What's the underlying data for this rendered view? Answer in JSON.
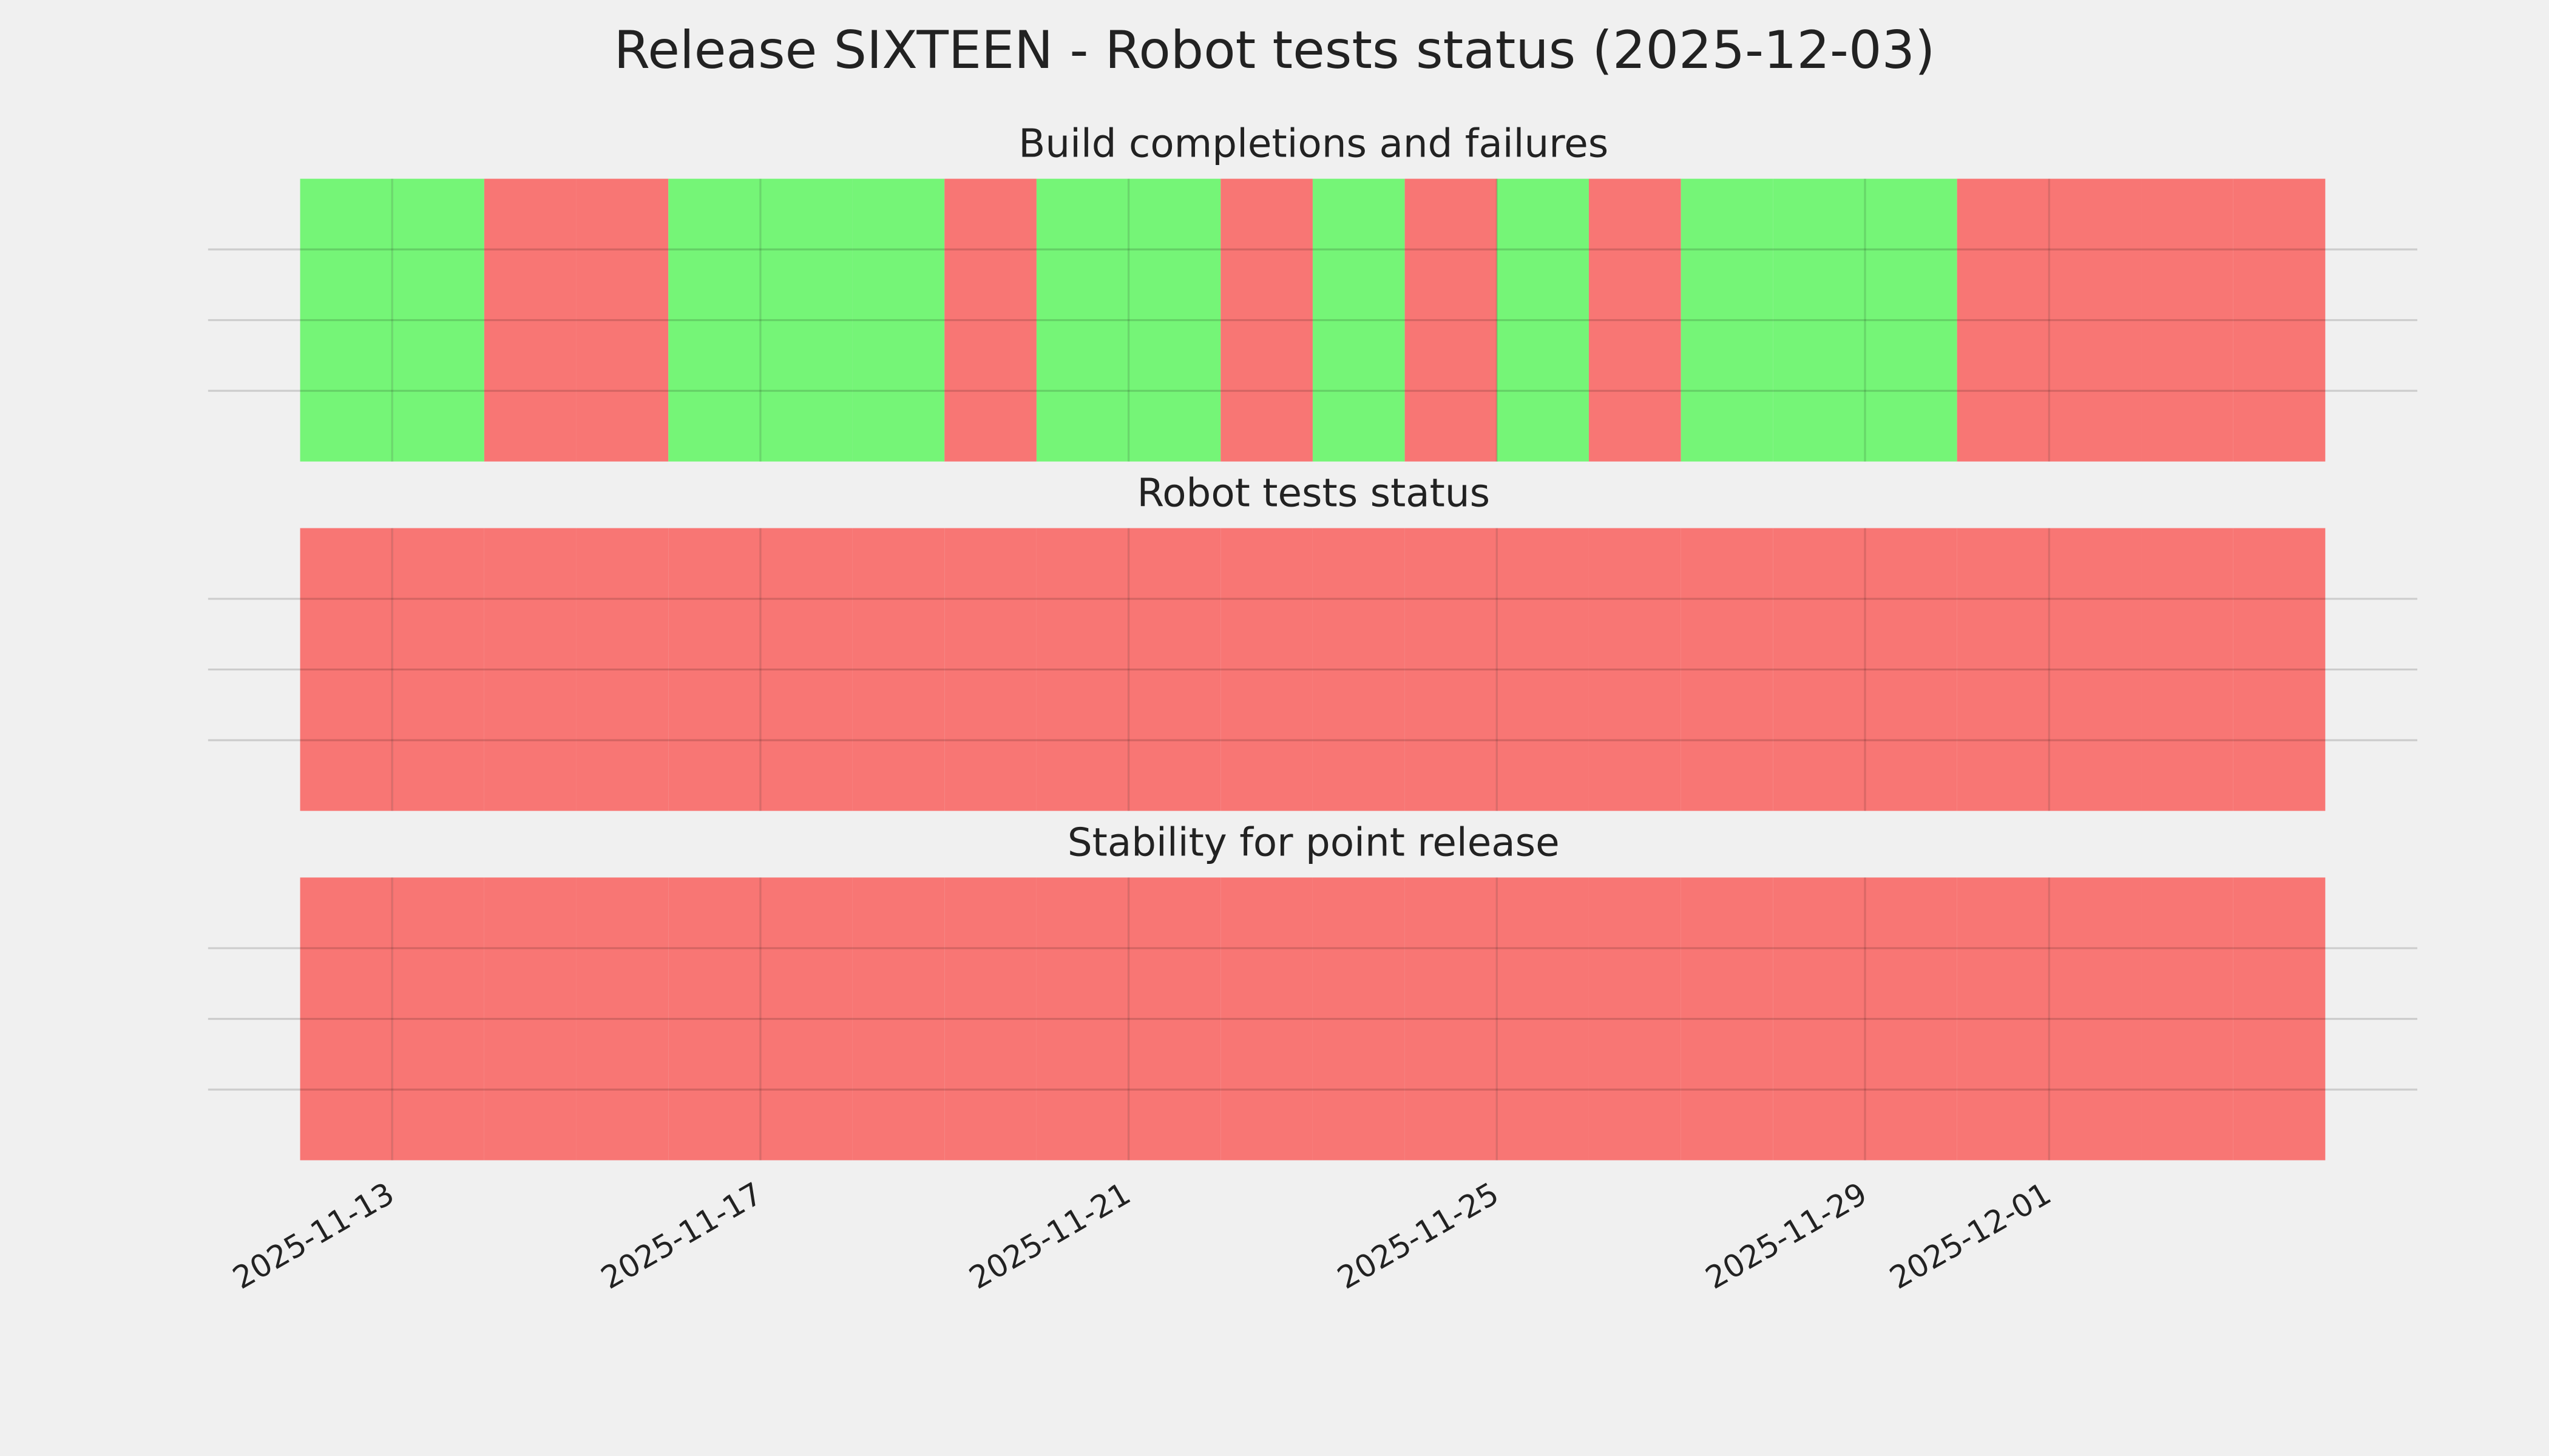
{
  "title": "Release SIXTEEN - Robot tests status (2025-12-03)",
  "chart_data": [
    {
      "type": "status",
      "title": "Build completions and failures",
      "x": [
        "2025-11-12",
        "2025-11-13",
        "2025-11-14",
        "2025-11-15",
        "2025-11-16",
        "2025-11-17",
        "2025-11-18",
        "2025-11-19",
        "2025-11-20",
        "2025-11-21",
        "2025-11-22",
        "2025-11-23",
        "2025-11-24",
        "2025-11-25",
        "2025-11-26",
        "2025-11-27",
        "2025-11-28",
        "2025-11-29",
        "2025-11-30",
        "2025-12-01",
        "2025-12-02",
        "2025-12-03"
      ],
      "values": [
        1,
        1,
        0,
        0,
        1,
        1,
        1,
        0,
        1,
        1,
        0,
        1,
        0,
        1,
        0,
        1,
        1,
        1,
        0,
        0,
        0,
        0
      ],
      "colors": [
        "#f87674",
        "#75f577"
      ],
      "xlim": [
        "2025-11-11",
        "2025-12-05"
      ],
      "xticks": [
        "2025-11-13",
        "2025-11-17",
        "2025-11-21",
        "2025-11-25",
        "2025-11-29",
        "2025-12-01"
      ],
      "ylim": [
        0,
        4
      ],
      "yticks": [
        1,
        2,
        3
      ],
      "grid": true
    },
    {
      "type": "status",
      "title": "Robot tests status",
      "x": [
        "2025-11-12",
        "2025-11-13",
        "2025-11-14",
        "2025-11-15",
        "2025-11-16",
        "2025-11-17",
        "2025-11-18",
        "2025-11-19",
        "2025-11-20",
        "2025-11-21",
        "2025-11-22",
        "2025-11-23",
        "2025-11-24",
        "2025-11-25",
        "2025-11-26",
        "2025-11-27",
        "2025-11-28",
        "2025-11-29",
        "2025-11-30",
        "2025-12-01",
        "2025-12-02",
        "2025-12-03"
      ],
      "values": [
        0,
        0,
        0,
        0,
        0,
        0,
        0,
        0,
        0,
        0,
        0,
        0,
        0,
        0,
        0,
        0,
        0,
        0,
        0,
        0,
        0,
        0
      ],
      "colors": [
        "#f87674",
        "#75f577"
      ],
      "xlim": [
        "2025-11-11",
        "2025-12-05"
      ],
      "xticks": [
        "2025-11-13",
        "2025-11-17",
        "2025-11-21",
        "2025-11-25",
        "2025-11-29",
        "2025-12-01"
      ],
      "ylim": [
        0,
        4
      ],
      "yticks": [
        1,
        2,
        3
      ],
      "grid": true
    },
    {
      "type": "status",
      "title": "Stability for point release",
      "x": [
        "2025-11-12",
        "2025-11-13",
        "2025-11-14",
        "2025-11-15",
        "2025-11-16",
        "2025-11-17",
        "2025-11-18",
        "2025-11-19",
        "2025-11-20",
        "2025-11-21",
        "2025-11-22",
        "2025-11-23",
        "2025-11-24",
        "2025-11-25",
        "2025-11-26",
        "2025-11-27",
        "2025-11-28",
        "2025-11-29",
        "2025-11-30",
        "2025-12-01",
        "2025-12-02",
        "2025-12-03"
      ],
      "values": [
        0,
        0,
        0,
        0,
        0,
        0,
        0,
        0,
        0,
        0,
        0,
        0,
        0,
        0,
        0,
        0,
        0,
        0,
        0,
        0,
        0,
        0
      ],
      "colors": [
        "#f87674",
        "#75f577"
      ],
      "xlim": [
        "2025-11-11",
        "2025-12-05"
      ],
      "xticks": [
        "2025-11-13",
        "2025-11-17",
        "2025-11-21",
        "2025-11-25",
        "2025-11-29",
        "2025-12-01"
      ],
      "ylim": [
        0,
        4
      ],
      "yticks": [
        1,
        2,
        3
      ],
      "grid": true
    }
  ]
}
